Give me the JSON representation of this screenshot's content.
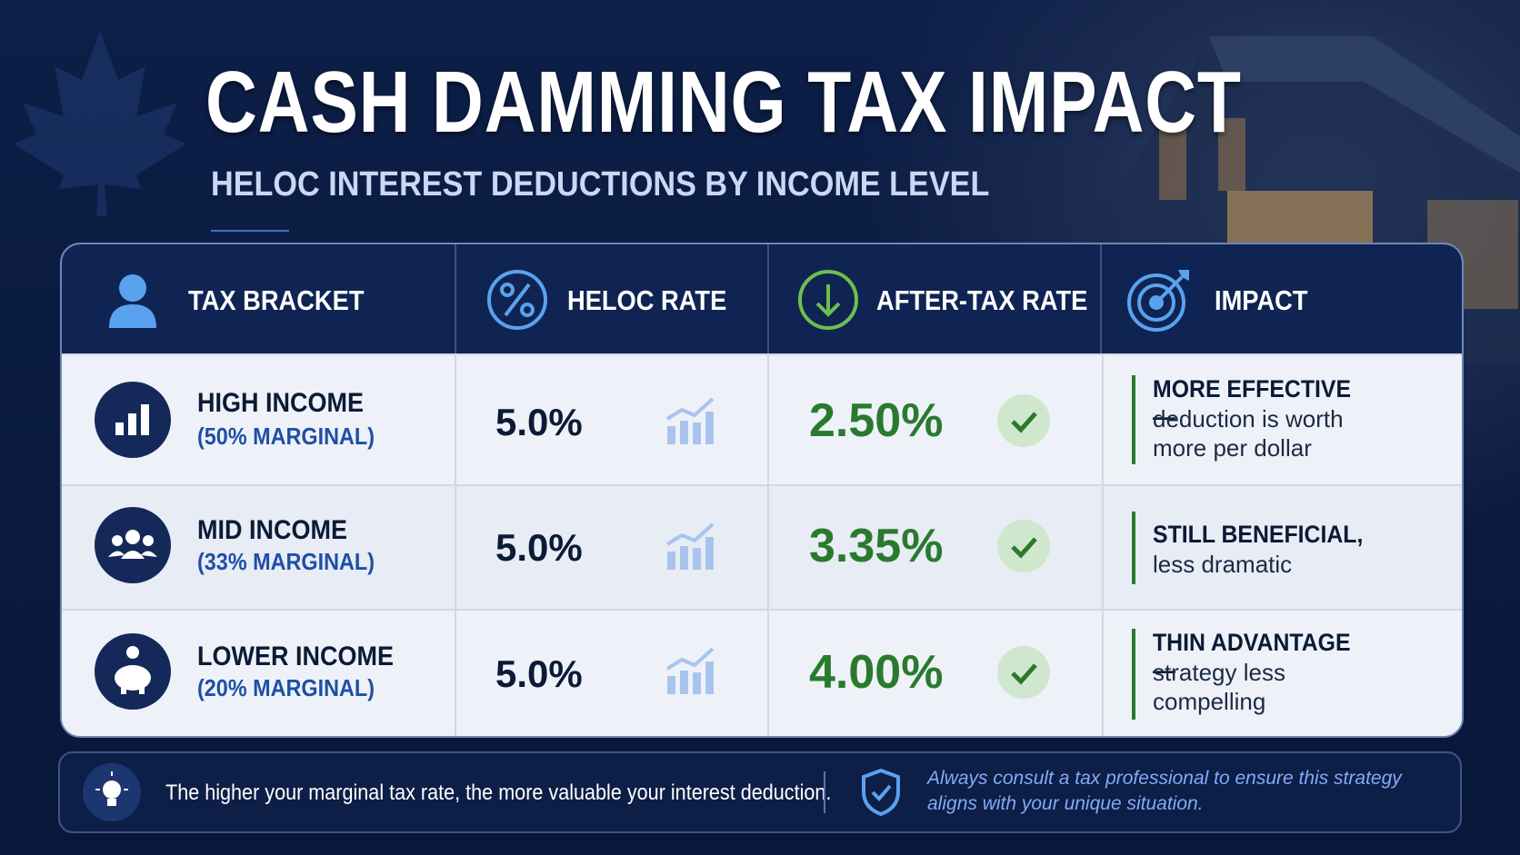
{
  "header": {
    "title": "CASH DAMMING TAX IMPACT",
    "subtitle": "HELOC INTEREST DEDUCTIONS BY INCOME LEVEL"
  },
  "table": {
    "columns": [
      "TAX BRACKET",
      "HELOC RATE",
      "AFTER-TAX RATE",
      "IMPACT"
    ],
    "rows": [
      {
        "bracket": "HIGH INCOME",
        "marginal": "(50% MARGINAL)",
        "heloc_rate": "5.0%",
        "after_tax_rate": "2.50%",
        "impact_title": "MORE EFFECTIVE —",
        "impact_text": "deduction is worth more per dollar"
      },
      {
        "bracket": "MID INCOME",
        "marginal": "(33% MARGINAL)",
        "heloc_rate": "5.0%",
        "after_tax_rate": "3.35%",
        "impact_title": "STILL BENEFICIAL,",
        "impact_text": "less dramatic"
      },
      {
        "bracket": "LOWER INCOME",
        "marginal": "(20% MARGINAL)",
        "heloc_rate": "5.0%",
        "after_tax_rate": "4.00%",
        "impact_title": "THIN ADVANTAGE —",
        "impact_text": "strategy less compelling"
      }
    ]
  },
  "footer": {
    "note": "The higher your marginal tax rate, the more valuable your interest deduction.",
    "disclaimer": "Always consult a tax professional to ensure this strategy aligns with your unique situation."
  }
}
